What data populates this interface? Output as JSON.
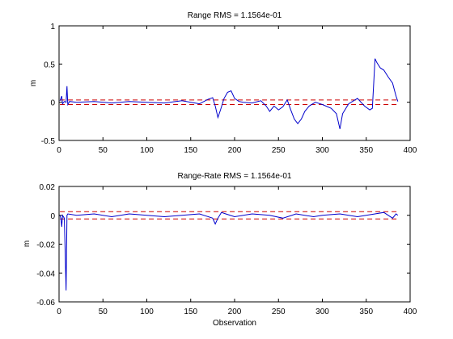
{
  "chart_data": [
    {
      "type": "line",
      "title": "Range RMS = 1.1564e-01",
      "xlabel": "",
      "ylabel": "m",
      "xlim": [
        0,
        400
      ],
      "ylim": [
        -0.5,
        1
      ],
      "xticks": [
        0,
        50,
        100,
        150,
        200,
        250,
        300,
        350,
        400
      ],
      "xtick_labels": [
        "0",
        "50",
        "100",
        "150",
        "200",
        "250",
        "300",
        "350",
        "400"
      ],
      "yticks": [
        -0.5,
        0,
        0.5,
        1
      ],
      "ytick_labels": [
        "-0.5",
        "0",
        "0.5",
        "1"
      ],
      "grid": false,
      "series": [
        {
          "color": "#0000cc",
          "points": [
            [
              1,
              0.02
            ],
            [
              3,
              0.08
            ],
            [
              4,
              -0.02
            ],
            [
              6,
              0.01
            ],
            [
              8,
              0.0
            ],
            [
              9,
              0.21
            ],
            [
              10,
              -0.03
            ],
            [
              12,
              0.01
            ],
            [
              20,
              0.0
            ],
            [
              40,
              0.01
            ],
            [
              60,
              -0.01
            ],
            [
              80,
              0.01
            ],
            [
              100,
              0.0
            ],
            [
              120,
              -0.01
            ],
            [
              140,
              0.02
            ],
            [
              150,
              0.0
            ],
            [
              160,
              -0.02
            ],
            [
              170,
              0.04
            ],
            [
              175,
              0.06
            ],
            [
              178,
              -0.05
            ],
            [
              181,
              -0.2
            ],
            [
              184,
              -0.1
            ],
            [
              188,
              0.05
            ],
            [
              192,
              0.13
            ],
            [
              196,
              0.15
            ],
            [
              200,
              0.05
            ],
            [
              205,
              0.01
            ],
            [
              210,
              0.0
            ],
            [
              220,
              -0.01
            ],
            [
              230,
              0.02
            ],
            [
              236,
              -0.05
            ],
            [
              240,
              -0.12
            ],
            [
              245,
              -0.05
            ],
            [
              250,
              -0.1
            ],
            [
              255,
              -0.06
            ],
            [
              260,
              0.03
            ],
            [
              264,
              -0.1
            ],
            [
              268,
              -0.22
            ],
            [
              272,
              -0.28
            ],
            [
              276,
              -0.22
            ],
            [
              280,
              -0.12
            ],
            [
              285,
              -0.05
            ],
            [
              292,
              0.0
            ],
            [
              300,
              -0.03
            ],
            [
              310,
              -0.08
            ],
            [
              316,
              -0.15
            ],
            [
              320,
              -0.35
            ],
            [
              323,
              -0.15
            ],
            [
              330,
              -0.02
            ],
            [
              340,
              0.05
            ],
            [
              348,
              -0.05
            ],
            [
              354,
              -0.1
            ],
            [
              357,
              -0.08
            ],
            [
              359,
              0.35
            ],
            [
              360,
              0.57
            ],
            [
              362,
              0.52
            ],
            [
              366,
              0.45
            ],
            [
              370,
              0.42
            ],
            [
              375,
              0.33
            ],
            [
              380,
              0.25
            ],
            [
              384,
              0.08
            ],
            [
              386,
              0.01
            ]
          ]
        }
      ],
      "reference_lines": {
        "color": "#cc0000",
        "style": "dashed",
        "y": [
          0.03,
          -0.03
        ]
      }
    },
    {
      "type": "line",
      "title": "Range-Rate RMS = 1.1564e-01",
      "xlabel": "Observation",
      "ylabel": "m",
      "xlim": [
        0,
        400
      ],
      "ylim": [
        -0.06,
        0.02
      ],
      "xticks": [
        0,
        50,
        100,
        150,
        200,
        250,
        300,
        350,
        400
      ],
      "xtick_labels": [
        "0",
        "50",
        "100",
        "150",
        "200",
        "250",
        "300",
        "350",
        "400"
      ],
      "yticks": [
        -0.06,
        -0.04,
        -0.02,
        0,
        0.02
      ],
      "ytick_labels": [
        "-0.06",
        "-0.04",
        "-0.02",
        "0",
        "0.02"
      ],
      "grid": false,
      "series": [
        {
          "color": "#0000cc",
          "points": [
            [
              1,
              0.0
            ],
            [
              2,
              -0.002
            ],
            [
              3,
              -0.008
            ],
            [
              4,
              0.0
            ],
            [
              6,
              -0.002
            ],
            [
              7,
              -0.026
            ],
            [
              8,
              -0.052
            ],
            [
              9,
              0.0
            ],
            [
              10,
              0.001
            ],
            [
              20,
              0.0
            ],
            [
              40,
              0.001
            ],
            [
              60,
              -0.001
            ],
            [
              80,
              0.001
            ],
            [
              100,
              0.0
            ],
            [
              120,
              -0.001
            ],
            [
              140,
              0.0
            ],
            [
              160,
              0.001
            ],
            [
              175,
              -0.002
            ],
            [
              178,
              -0.006
            ],
            [
              181,
              -0.002
            ],
            [
              185,
              0.002
            ],
            [
              190,
              0.001
            ],
            [
              200,
              -0.001
            ],
            [
              220,
              0.001
            ],
            [
              240,
              0.0
            ],
            [
              255,
              -0.002
            ],
            [
              270,
              0.001
            ],
            [
              290,
              -0.001
            ],
            [
              300,
              0.0
            ],
            [
              320,
              0.001
            ],
            [
              340,
              -0.001
            ],
            [
              360,
              0.001
            ],
            [
              370,
              0.002
            ],
            [
              380,
              -0.002
            ],
            [
              384,
              0.001
            ],
            [
              386,
              0.0
            ]
          ]
        }
      ],
      "reference_lines": {
        "color": "#cc0000",
        "style": "dashed",
        "y": [
          0.0025,
          -0.0025
        ]
      }
    }
  ]
}
